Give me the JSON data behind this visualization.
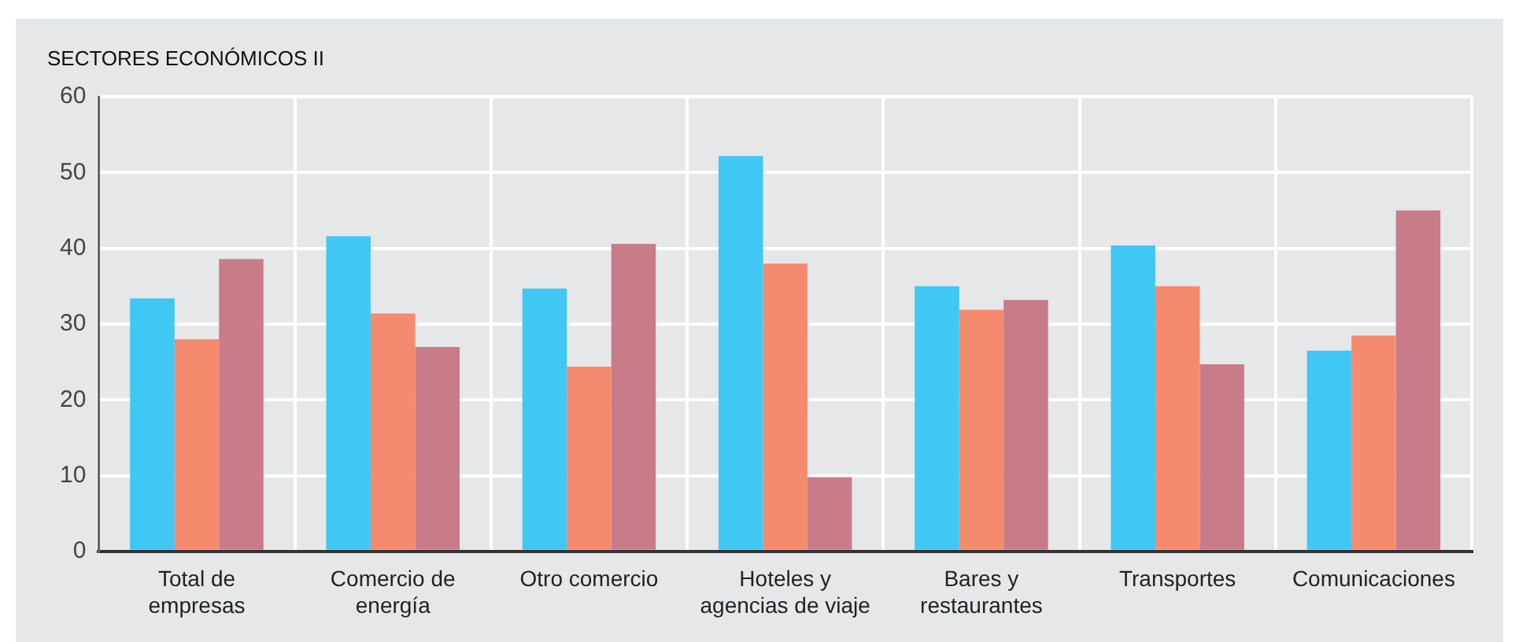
{
  "chart_data": {
    "type": "bar",
    "title": "SECTORES ECONÓMICOS II",
    "categories": [
      "Total de\nempresas",
      "Comercio de\nenergía",
      "Otro comercio",
      "Hoteles y\nagencias de viaje",
      "Bares y\nrestaurantes",
      "Transportes",
      "Comunicaciones"
    ],
    "series": [
      {
        "color": "#40c7f4",
        "values": [
          33.4,
          41.6,
          34.7,
          52.2,
          35.0,
          40.4,
          26.5
        ]
      },
      {
        "color": "#f48b6e",
        "values": [
          28.0,
          31.4,
          24.4,
          38.0,
          31.9,
          35.0,
          28.5
        ]
      },
      {
        "color": "#c87c89",
        "values": [
          38.6,
          27.0,
          40.6,
          9.8,
          33.2,
          24.7,
          45.0
        ]
      }
    ],
    "ylim": [
      0,
      60
    ],
    "yticks": [
      0,
      10,
      20,
      30,
      40,
      50,
      60
    ],
    "grid": true,
    "legend": false
  }
}
